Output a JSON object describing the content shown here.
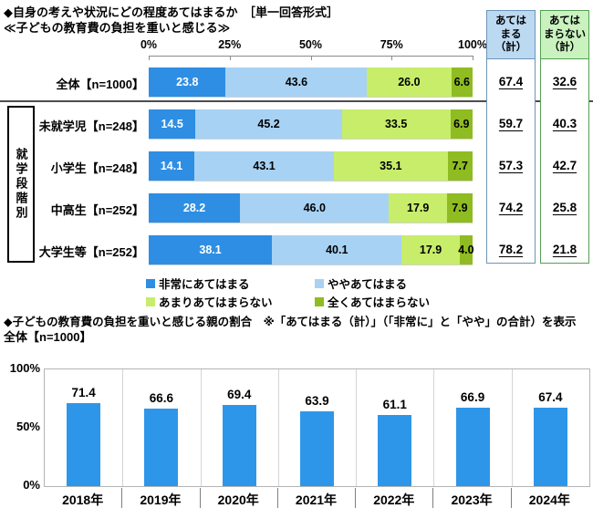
{
  "survey_chart": {
    "title_line1": "◆自身の考えや状況にどの程度あてはまるか　［単一回答形式］",
    "title_line2": "≪子どもの教育費の負担を重いと感じる≫",
    "group_label": "就学段階別",
    "summary_agree_header": "あては\nまる\n（計）",
    "summary_disagree_header": "あては\nまらない\n（計）"
  },
  "trend_chart": {
    "title": "◆子どもの教育費の負担を重いと感じる親の割合　※「あてはまる（計）」（「非常に」と「やや」の合計）を表示",
    "subtitle": "全体【n=1000】"
  },
  "chart_data": [
    {
      "type": "bar",
      "orientation": "horizontal-stacked",
      "title": "自身の考えや状況にどの程度あてはまるか（子どもの教育費の負担を重いと感じる）",
      "categories": [
        "全体【n=1000】",
        "未就学児【n=248】",
        "小学生【n=248】",
        "中高生【n=252】",
        "大学生等【n=252】"
      ],
      "group_label": "就学段階別",
      "xlim": [
        0,
        100
      ],
      "x_ticks": [
        "0%",
        "25%",
        "50%",
        "75%",
        "100%"
      ],
      "series": [
        {
          "name": "非常にあてはまる",
          "color": "#2e8ee3",
          "label_color": "#ffffff",
          "values": [
            23.8,
            14.5,
            14.1,
            28.2,
            38.1
          ]
        },
        {
          "name": "ややあてはまる",
          "color": "#a8d2f3",
          "label_color": "#000000",
          "values": [
            43.6,
            45.2,
            43.1,
            46.0,
            40.1
          ]
        },
        {
          "name": "あまりあてはまらない",
          "color": "#c7ed6b",
          "label_color": "#000000",
          "values": [
            26.0,
            33.5,
            35.1,
            17.9,
            17.9
          ]
        },
        {
          "name": "全くあてはまらない",
          "color": "#8fbc21",
          "label_color": "#000000",
          "values": [
            6.6,
            6.9,
            7.7,
            7.9,
            4.0
          ]
        }
      ],
      "summary": {
        "agree_header": "あてはまる（計）",
        "disagree_header": "あてはまらない（計）",
        "agree_values": [
          67.4,
          59.7,
          57.3,
          74.2,
          78.2
        ],
        "disagree_values": [
          32.6,
          40.3,
          42.7,
          25.8,
          21.8
        ]
      },
      "legend_position": "bottom"
    },
    {
      "type": "bar",
      "title": "子どもの教育費の負担を重いと感じる親の割合",
      "note": "※「あてはまる（計）」（「非常に」と「やや」の合計）を表示",
      "subtitle": "全体【n=1000】",
      "categories": [
        "2018年",
        "2019年",
        "2020年",
        "2021年",
        "2022年",
        "2023年",
        "2024年"
      ],
      "values": [
        71.4,
        66.6,
        69.4,
        63.9,
        61.1,
        66.9,
        67.4
      ],
      "ylim": [
        0,
        100
      ],
      "y_ticks": [
        "100%",
        "50%",
        "0%"
      ],
      "bar_color": "#2e96e9",
      "grid": true
    }
  ]
}
